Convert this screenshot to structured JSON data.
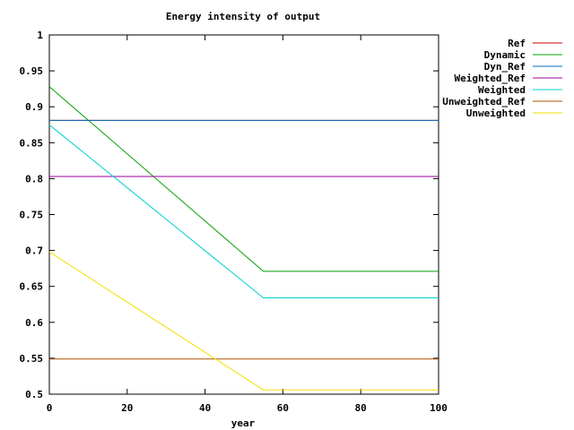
{
  "chart_data": {
    "type": "line",
    "title": "Energy intensity of output",
    "xlabel": "year",
    "ylabel": "",
    "xlim": [
      0,
      100
    ],
    "ylim": [
      0.5,
      1
    ],
    "x_ticks": [
      0,
      20,
      40,
      60,
      80,
      100
    ],
    "y_ticks": [
      0.5,
      0.55,
      0.6,
      0.65,
      0.7,
      0.75,
      0.8,
      0.85,
      0.9,
      0.95,
      1
    ],
    "y_tick_labels": [
      "0.5",
      "0.55",
      "0.6",
      "0.65",
      "0.7",
      "0.75",
      "0.8",
      "0.85",
      "0.9",
      "0.95",
      "1"
    ],
    "grid": false,
    "legend_position": "outside-right",
    "series": [
      {
        "name": "Ref",
        "color": "#cc0000",
        "x": [
          0,
          100
        ],
        "y": [
          0.881,
          0.881
        ]
      },
      {
        "name": "Dynamic",
        "color": "#00a000",
        "x": [
          0,
          55,
          100
        ],
        "y": [
          0.928,
          0.671,
          0.671
        ]
      },
      {
        "name": "Dyn_Ref",
        "color": "#0070c0",
        "x": [
          0,
          100
        ],
        "y": [
          0.881,
          0.881
        ]
      },
      {
        "name": "Weighted_Ref",
        "color": "#a000a0",
        "x": [
          0,
          100
        ],
        "y": [
          0.803,
          0.803
        ]
      },
      {
        "name": "Weighted",
        "color": "#00d0d0",
        "x": [
          0,
          55,
          100
        ],
        "y": [
          0.875,
          0.634,
          0.634
        ]
      },
      {
        "name": "Unweighted_Ref",
        "color": "#b05000",
        "x": [
          0,
          100
        ],
        "y": [
          0.549,
          0.549
        ]
      },
      {
        "name": "Unweighted",
        "color": "#f0e000",
        "x": [
          0,
          55,
          100
        ],
        "y": [
          0.698,
          0.506,
          0.506
        ]
      }
    ]
  }
}
